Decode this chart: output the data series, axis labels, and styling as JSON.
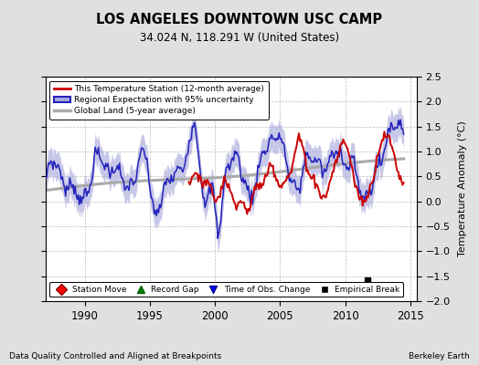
{
  "title": "LOS ANGELES DOWNTOWN USC CAMP",
  "subtitle": "34.024 N, 118.291 W (United States)",
  "ylabel": "Temperature Anomaly (°C)",
  "footer_left": "Data Quality Controlled and Aligned at Breakpoints",
  "footer_right": "Berkeley Earth",
  "xlim": [
    1987.0,
    2015.5
  ],
  "ylim": [
    -2.0,
    2.5
  ],
  "yticks": [
    -2,
    -1.5,
    -1,
    -0.5,
    0,
    0.5,
    1,
    1.5,
    2,
    2.5
  ],
  "xticks": [
    1990,
    1995,
    2000,
    2005,
    2010,
    2015
  ],
  "bg_color": "#e0e0e0",
  "plot_bg_color": "#ffffff",
  "red_color": "#cc0000",
  "blue_color": "#2222bb",
  "blue_fill_color": "#aaaadd",
  "gray_color": "#aaaaaa",
  "empirical_break_x": 2011.7,
  "empirical_break_y": -1.58,
  "legend1_labels": [
    "This Temperature Station (12-month average)",
    "Regional Expectation with 95% uncertainty",
    "Global Land (5-year average)"
  ],
  "legend2_labels": [
    "Station Move",
    "Record Gap",
    "Time of Obs. Change",
    "Empirical Break"
  ]
}
